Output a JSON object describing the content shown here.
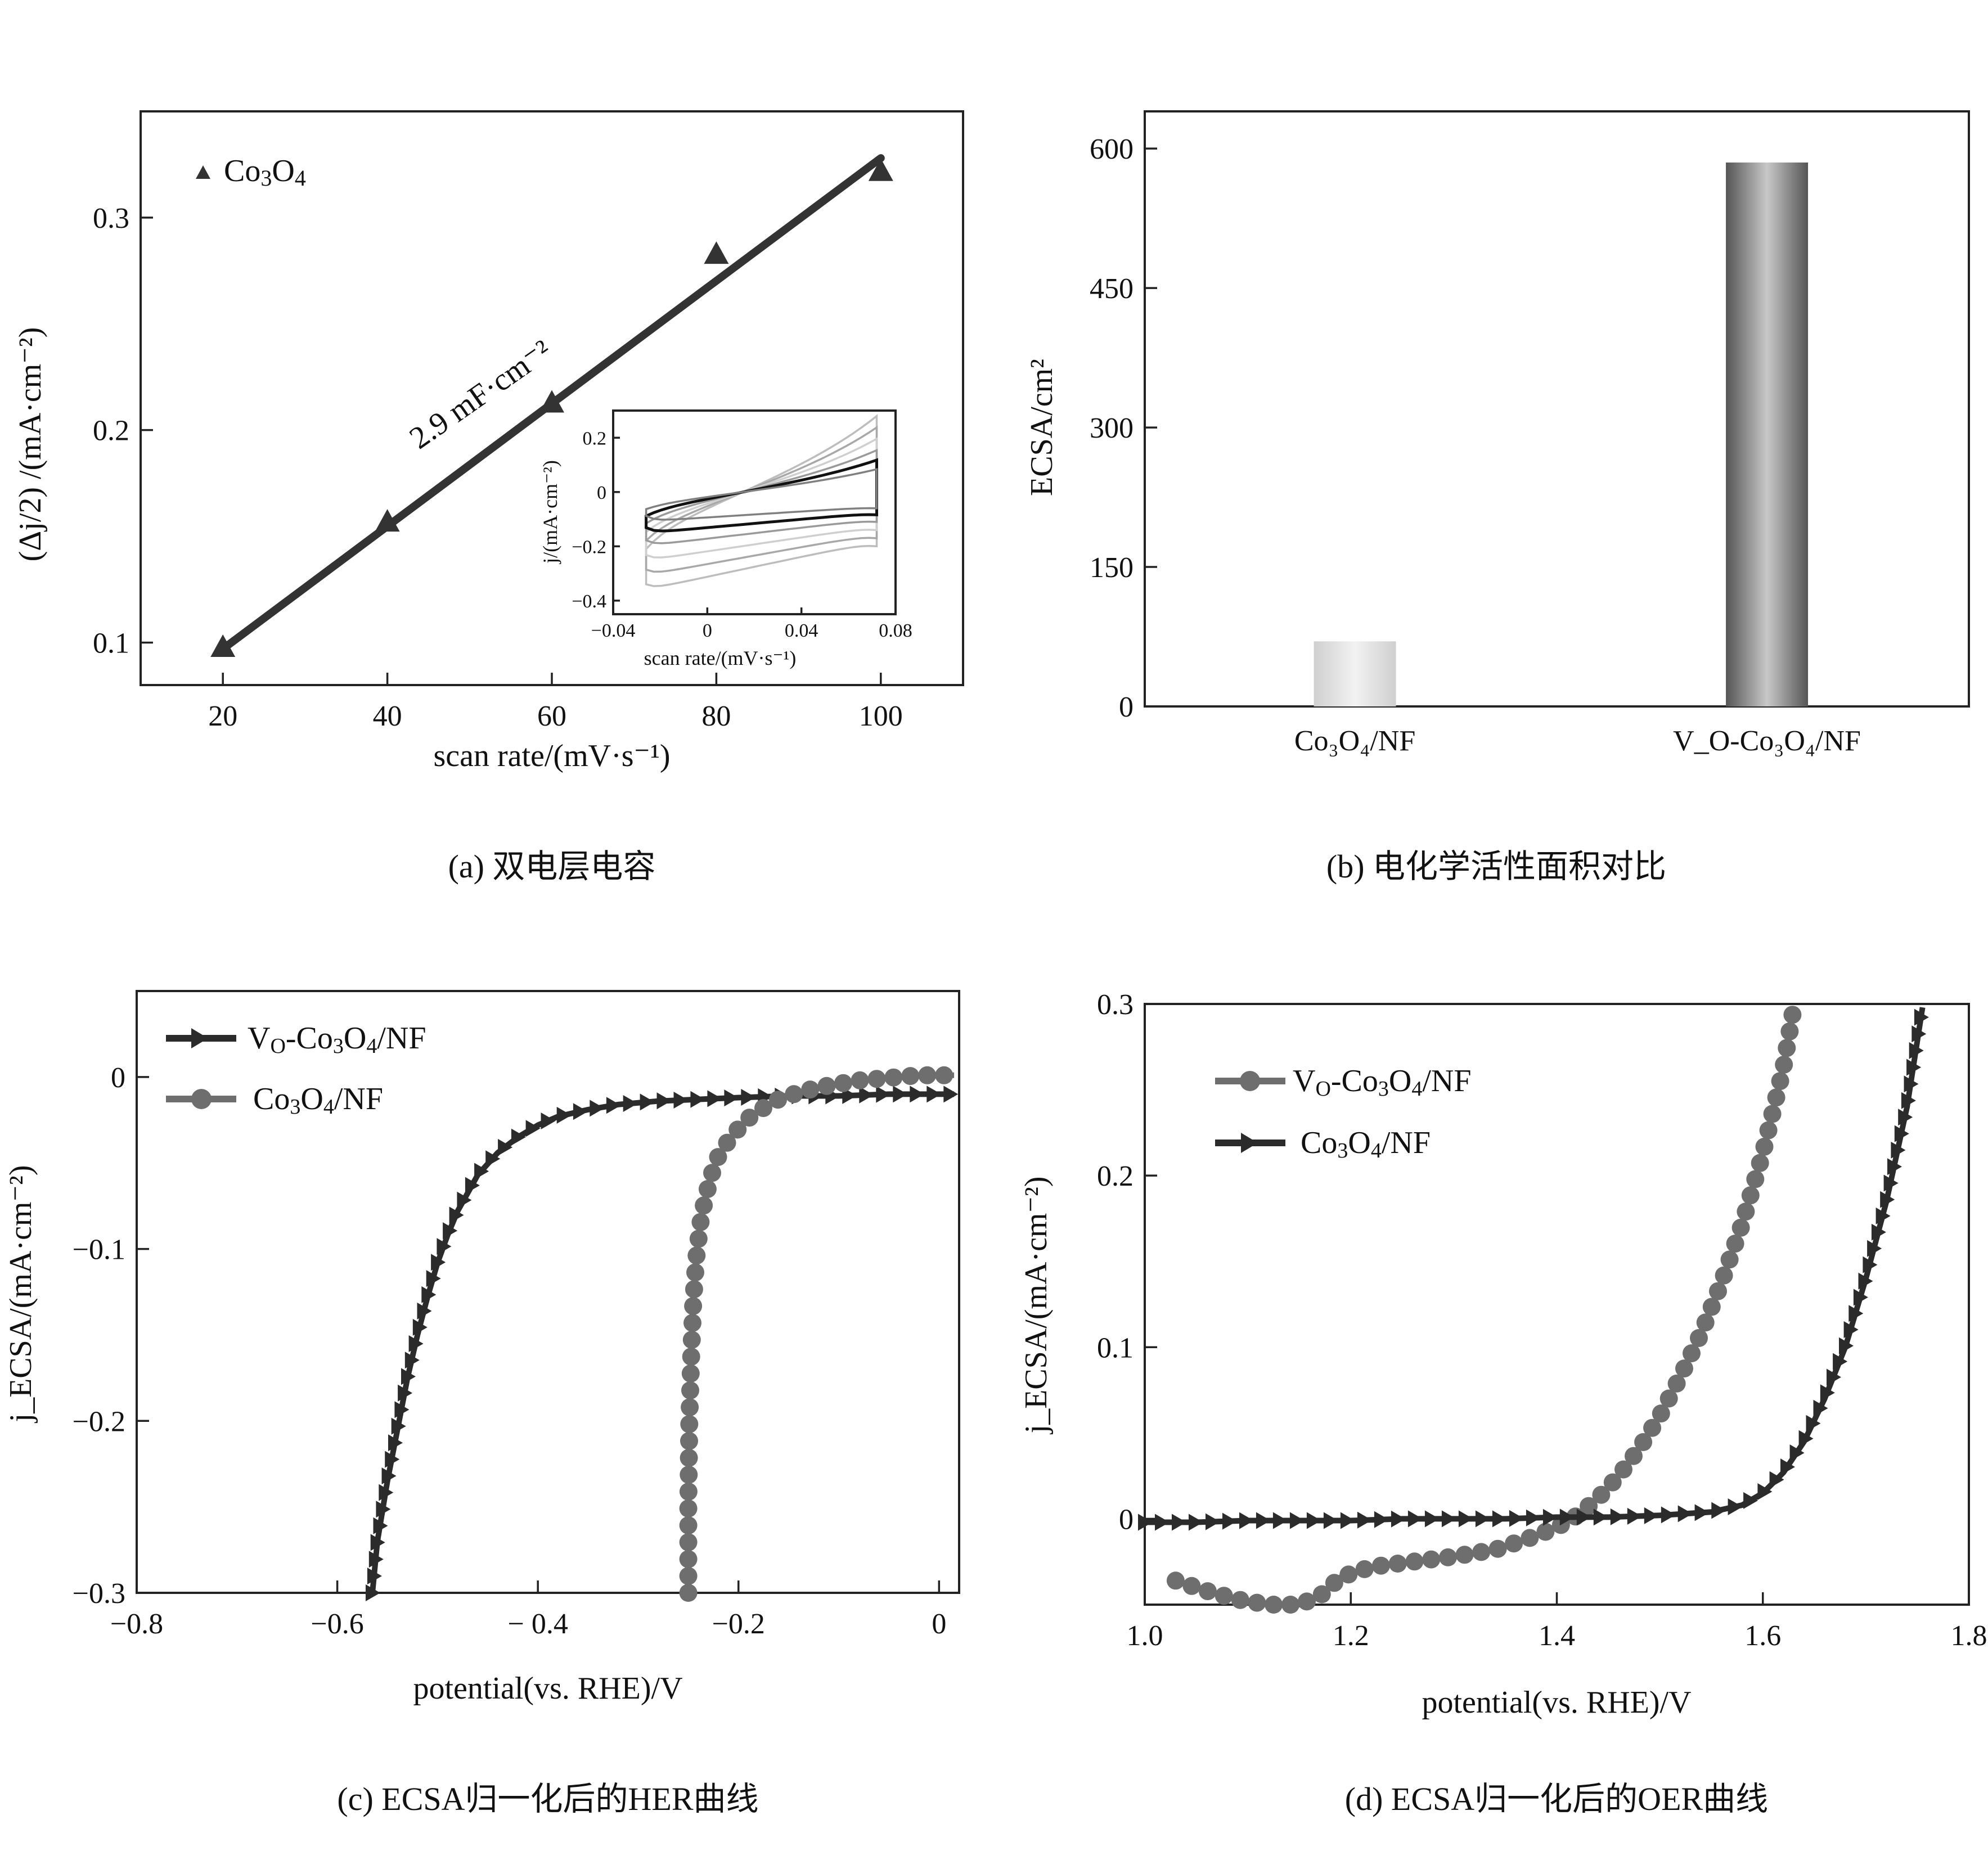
{
  "chart_data": [
    {
      "panel": "a",
      "type": "scatter",
      "caption": "(a) 双电层电容",
      "xlabel": "scan rate/(mV·s⁻¹)",
      "ylabel": "(Δj/2) /(mA·cm⁻²)",
      "xlim": [
        10,
        110
      ],
      "ylim": [
        0.08,
        0.35
      ],
      "xticks": [
        20,
        40,
        60,
        80,
        100
      ],
      "yticks": [
        0.1,
        0.2,
        0.3
      ],
      "annotation": "2.9 mF·cm⁻²",
      "series": [
        {
          "name": "Co₃O₄",
          "x": [
            20,
            40,
            60,
            80,
            100
          ],
          "y": [
            0.098,
            0.157,
            0.213,
            0.283,
            0.322
          ]
        }
      ],
      "fit": {
        "x": [
          20,
          100
        ],
        "y": [
          0.097,
          0.328
        ]
      },
      "inset": {
        "xlabel": "scan rate/(mV·s⁻¹)",
        "ylabel": "j/(mA·cm⁻²)",
        "xlim": [
          -0.04,
          0.08
        ],
        "ylim": [
          -0.45,
          0.3
        ],
        "xticks": [
          -0.04,
          0,
          0.04,
          0.08
        ],
        "yticks": [
          0.2,
          0,
          -0.2,
          -0.4
        ],
        "tick_labels_x": [
          "−0.04",
          "0",
          "0.04",
          "0.08"
        ],
        "tick_labels_y": [
          "0.2",
          "0",
          "−0.2",
          "−0.4"
        ]
      }
    },
    {
      "panel": "b",
      "type": "bar",
      "caption": "(b) 电化学活性面积对比",
      "ylabel": "ECSA/cm²",
      "categories": [
        "Co₃O₄/NF",
        "V_O-Co₃O₄/NF"
      ],
      "values": [
        70,
        585
      ],
      "ylim": [
        0,
        640
      ],
      "yticks": [
        0,
        150,
        300,
        450,
        600
      ]
    },
    {
      "panel": "c",
      "type": "line",
      "caption": "(c) ECSA归一化后的HER曲线",
      "xlabel": "potential(vs. RHE)/V",
      "ylabel": "j_ECSA/(mA·cm⁻²)",
      "xlim": [
        -0.8,
        0.02
      ],
      "ylim": [
        -0.3,
        0.05
      ],
      "xticks": [
        -0.8,
        -0.6,
        -0.4,
        -0.2,
        0
      ],
      "yticks": [
        0,
        -0.1,
        -0.2,
        -0.3
      ],
      "tick_labels_x": [
        "−0.8",
        "−0.6",
        "− 0.4",
        "−0.2",
        "0"
      ],
      "tick_labels_y": [
        "0",
        "−0.1",
        "−0.2",
        "−0.3"
      ],
      "series": [
        {
          "name": "V_O-Co₃O₄/NF",
          "marker": "triangle-right",
          "color": "#2b2b2b",
          "x": [
            -0.565,
            -0.56,
            -0.55,
            -0.54,
            -0.53,
            -0.52,
            -0.51,
            -0.5,
            -0.49,
            -0.48,
            -0.46,
            -0.44,
            -0.42,
            -0.4,
            -0.38,
            -0.35,
            -0.32,
            -0.28,
            -0.24,
            -0.2,
            -0.15,
            -0.1,
            -0.05,
            0.0,
            0.015
          ],
          "y": [
            -0.3,
            -0.27,
            -0.235,
            -0.205,
            -0.175,
            -0.15,
            -0.128,
            -0.108,
            -0.092,
            -0.078,
            -0.057,
            -0.044,
            -0.035,
            -0.028,
            -0.023,
            -0.019,
            -0.016,
            -0.014,
            -0.013,
            -0.012,
            -0.011,
            -0.011,
            -0.01,
            -0.01,
            -0.01
          ]
        },
        {
          "name": "Co₃O₄/NF",
          "marker": "circle",
          "color": "#6e6e6e",
          "x": [
            -0.25,
            -0.25,
            -0.249,
            -0.247,
            -0.245,
            -0.242,
            -0.238,
            -0.233,
            -0.227,
            -0.22,
            -0.21,
            -0.2,
            -0.19,
            -0.175,
            -0.16,
            -0.14,
            -0.12,
            -0.1,
            -0.08,
            -0.06,
            -0.04,
            -0.02,
            0.0,
            0.015
          ],
          "y": [
            -0.3,
            -0.25,
            -0.2,
            -0.16,
            -0.13,
            -0.105,
            -0.085,
            -0.07,
            -0.057,
            -0.046,
            -0.037,
            -0.03,
            -0.024,
            -0.018,
            -0.013,
            -0.009,
            -0.006,
            -0.004,
            -0.002,
            -0.001,
            0.0,
            0.001,
            0.001,
            0.001
          ]
        }
      ]
    },
    {
      "panel": "d",
      "type": "line",
      "caption": "(d) ECSA归一化后的OER曲线",
      "xlabel": "potential(vs. RHE)/V",
      "ylabel": "j_ECSA/(mA·cm⁻²)",
      "xlim": [
        1.0,
        1.8
      ],
      "ylim": [
        -0.05,
        0.3
      ],
      "xticks": [
        1.0,
        1.2,
        1.4,
        1.6,
        1.8
      ],
      "yticks": [
        0,
        0.1,
        0.2,
        0.3
      ],
      "tick_labels_x": [
        "1.0",
        "1.2",
        "1.4",
        "1.6",
        "1.8"
      ],
      "tick_labels_y": [
        "0",
        "0.1",
        "0.2",
        "0.3"
      ],
      "series": [
        {
          "name": "V_O-Co₃O₄/NF",
          "marker": "circle",
          "color": "#6e6e6e",
          "x": [
            1.03,
            1.06,
            1.09,
            1.12,
            1.15,
            1.17,
            1.19,
            1.22,
            1.26,
            1.3,
            1.34,
            1.37,
            1.4,
            1.42,
            1.44,
            1.46,
            1.48,
            1.5,
            1.52,
            1.54,
            1.56,
            1.58,
            1.6,
            1.62,
            1.63
          ],
          "y": [
            -0.036,
            -0.042,
            -0.047,
            -0.05,
            -0.05,
            -0.045,
            -0.034,
            -0.028,
            -0.025,
            -0.022,
            -0.018,
            -0.012,
            -0.005,
            0.002,
            0.012,
            0.025,
            0.041,
            0.06,
            0.083,
            0.108,
            0.138,
            0.172,
            0.213,
            0.263,
            0.298
          ]
        },
        {
          "name": "Co₃O₄/NF",
          "marker": "triangle-right",
          "color": "#2b2b2b",
          "x": [
            1.0,
            1.05,
            1.1,
            1.15,
            1.2,
            1.25,
            1.3,
            1.35,
            1.4,
            1.45,
            1.5,
            1.55,
            1.58,
            1.6,
            1.62,
            1.64,
            1.66,
            1.68,
            1.7,
            1.72,
            1.74,
            1.755
          ],
          "y": [
            -0.002,
            -0.002,
            -0.001,
            -0.001,
            -0.001,
            0.0,
            0.0,
            0.0,
            0.001,
            0.001,
            0.002,
            0.004,
            0.008,
            0.015,
            0.027,
            0.045,
            0.07,
            0.1,
            0.14,
            0.185,
            0.24,
            0.298
          ]
        }
      ]
    }
  ],
  "captions": {
    "a": "(a) 双电层电容",
    "b": "(b) 电化学活性面积对比",
    "c": "(c) ECSA归一化后的HER曲线",
    "d": "(d) ECSA归一化后的OER曲线"
  }
}
